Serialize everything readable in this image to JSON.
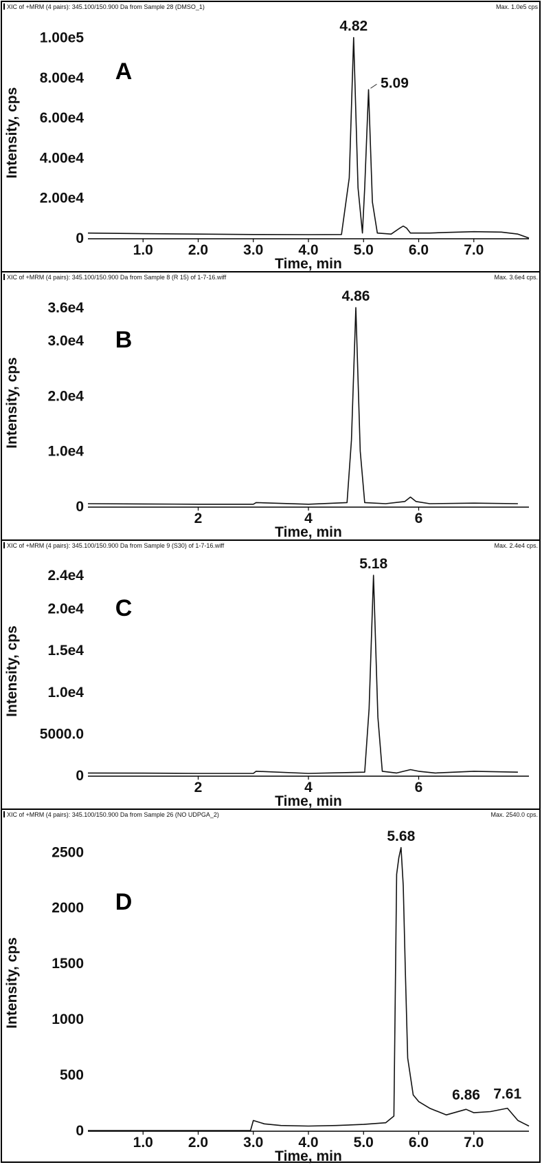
{
  "colors": {
    "trace": "#111111",
    "frame": "#000000",
    "background": "#ffffff"
  },
  "chart_data": [
    {
      "type": "line",
      "panel_label": "A",
      "header_left": "XIC of +MRM (4 pairs): 345.100/150.900 Da  from Sample 28 (DMSO_1)",
      "header_right": "Max. 1.0e5 cps",
      "xlabel": "Time, min",
      "ylabel": "Intensity, cps",
      "xlim": [
        0,
        8
      ],
      "ylim": [
        0,
        105000
      ],
      "x_ticks": [
        1,
        2,
        3,
        4,
        5,
        6,
        7
      ],
      "x_tick_labels": [
        "1.0",
        "2.0",
        "3.0",
        "4.0",
        "5.0",
        "6.0",
        "7.0"
      ],
      "y_ticks": [
        0,
        20000,
        40000,
        60000,
        80000,
        100000
      ],
      "y_tick_labels": [
        "0",
        "2.00e4",
        "4.00e4",
        "6.00e4",
        "8.00e4",
        "1.00e5"
      ],
      "peak_labels": [
        {
          "x": 4.82,
          "y": 100000,
          "text": "4.82"
        },
        {
          "x": 5.09,
          "y": 74000,
          "text": "5.09"
        }
      ],
      "series": [
        {
          "x": [
            0,
            1,
            2,
            3,
            4,
            4.6,
            4.74,
            4.82,
            4.9,
            4.98,
            5.02,
            5.09,
            5.16,
            5.25,
            5.5,
            5.66,
            5.72,
            5.78,
            5.85,
            6.2,
            6.5,
            7,
            7.5,
            7.8,
            8
          ],
          "y": [
            2500,
            2200,
            2000,
            1800,
            1700,
            1800,
            30000,
            100000,
            25000,
            2500,
            25000,
            74000,
            18000,
            2500,
            2000,
            5000,
            6000,
            5000,
            2500,
            2500,
            2800,
            3200,
            3000,
            2000,
            0
          ]
        }
      ]
    },
    {
      "type": "line",
      "panel_label": "B",
      "header_left": "XIC of +MRM (4 pairs): 345.100/150.900 Da  from Sample 8 (R 15) of 1-7-16.wiff",
      "header_right": "Max. 3.6e4 cps.",
      "xlabel": "Time, min",
      "ylabel": "Intensity, cps",
      "xlim": [
        0,
        8
      ],
      "ylim": [
        0,
        37500
      ],
      "x_ticks": [
        2,
        4,
        6
      ],
      "x_tick_labels": [
        "2",
        "4",
        "6"
      ],
      "y_ticks": [
        0,
        10000,
        20000,
        30000,
        36000
      ],
      "y_tick_labels": [
        "0",
        "1.0e4",
        "2.0e4",
        "3.0e4",
        "3.6e4"
      ],
      "peak_labels": [
        {
          "x": 4.86,
          "y": 36000,
          "text": "4.86"
        }
      ],
      "series": [
        {
          "x": [
            0,
            1,
            2,
            3,
            3.05,
            4,
            4.7,
            4.78,
            4.86,
            4.94,
            5.02,
            5.4,
            5.75,
            5.85,
            5.95,
            6.2,
            7,
            7.8
          ],
          "y": [
            500,
            450,
            400,
            400,
            700,
            400,
            700,
            12000,
            36000,
            10000,
            700,
            500,
            900,
            1700,
            900,
            500,
            600,
            500
          ]
        }
      ]
    },
    {
      "type": "line",
      "panel_label": "C",
      "header_left": "XIC of +MRM (4 pairs): 345.100/150.900 Da  from Sample 9 (S30) of 1-7-16.wiff",
      "header_right": "Max. 2.4e4 cps.",
      "xlabel": "Time, min",
      "ylabel": "Intensity, cps",
      "xlim": [
        0,
        8
      ],
      "ylim": [
        0,
        25000
      ],
      "x_ticks": [
        2,
        4,
        6
      ],
      "x_tick_labels": [
        "2",
        "4",
        "6"
      ],
      "y_ticks": [
        0,
        5000,
        10000,
        15000,
        20000,
        24000
      ],
      "y_tick_labels": [
        "0",
        "5000.0",
        "1.0e4",
        "1.5e4",
        "2.0e4",
        "2.4e4"
      ],
      "peak_labels": [
        {
          "x": 5.18,
          "y": 24000,
          "text": "5.18"
        }
      ],
      "series": [
        {
          "x": [
            0,
            1,
            2,
            3,
            3.05,
            4,
            5.02,
            5.1,
            5.18,
            5.26,
            5.34,
            5.6,
            5.85,
            6,
            6.3,
            7,
            7.8
          ],
          "y": [
            300,
            280,
            250,
            250,
            500,
            250,
            400,
            8000,
            24000,
            7000,
            500,
            300,
            700,
            500,
            300,
            500,
            400
          ]
        }
      ]
    },
    {
      "type": "line",
      "panel_label": "D",
      "header_left": "XIC of +MRM (4 pairs): 345.100/150.900 Da  from Sample 26 (NO UDPGA_2)",
      "header_right": "Max. 2540.0 cps.",
      "xlabel": "Time, min",
      "ylabel": "Intensity, cps",
      "xlim": [
        0,
        8
      ],
      "ylim": [
        0,
        2650
      ],
      "x_ticks": [
        1,
        2,
        3,
        4,
        5,
        6,
        7
      ],
      "x_tick_labels": [
        "1.0",
        "2.0",
        "3.0",
        "4.0",
        "5.0",
        "6.0",
        "7.0"
      ],
      "y_ticks": [
        0,
        500,
        1000,
        1500,
        2000,
        2500
      ],
      "y_tick_labels": [
        "0",
        "500",
        "1000",
        "1500",
        "2000",
        "2500"
      ],
      "peak_labels": [
        {
          "x": 5.68,
          "y": 2540,
          "text": "5.68"
        },
        {
          "x": 6.86,
          "y": 190,
          "text": "6.86"
        },
        {
          "x": 7.61,
          "y": 200,
          "text": "7.61"
        }
      ],
      "series": [
        {
          "x": [
            0,
            1,
            2,
            2.95,
            3,
            3.2,
            3.5,
            4,
            4.5,
            5,
            5.4,
            5.55,
            5.6,
            5.64,
            5.68,
            5.72,
            5.76,
            5.8,
            5.9,
            6,
            6.2,
            6.5,
            6.86,
            7,
            7.3,
            7.61,
            7.8,
            8
          ],
          "y": [
            0,
            0,
            0,
            0,
            90,
            60,
            45,
            40,
            45,
            55,
            70,
            130,
            2300,
            2450,
            2540,
            2200,
            1400,
            650,
            320,
            260,
            200,
            140,
            190,
            160,
            170,
            200,
            90,
            40
          ]
        }
      ]
    }
  ]
}
